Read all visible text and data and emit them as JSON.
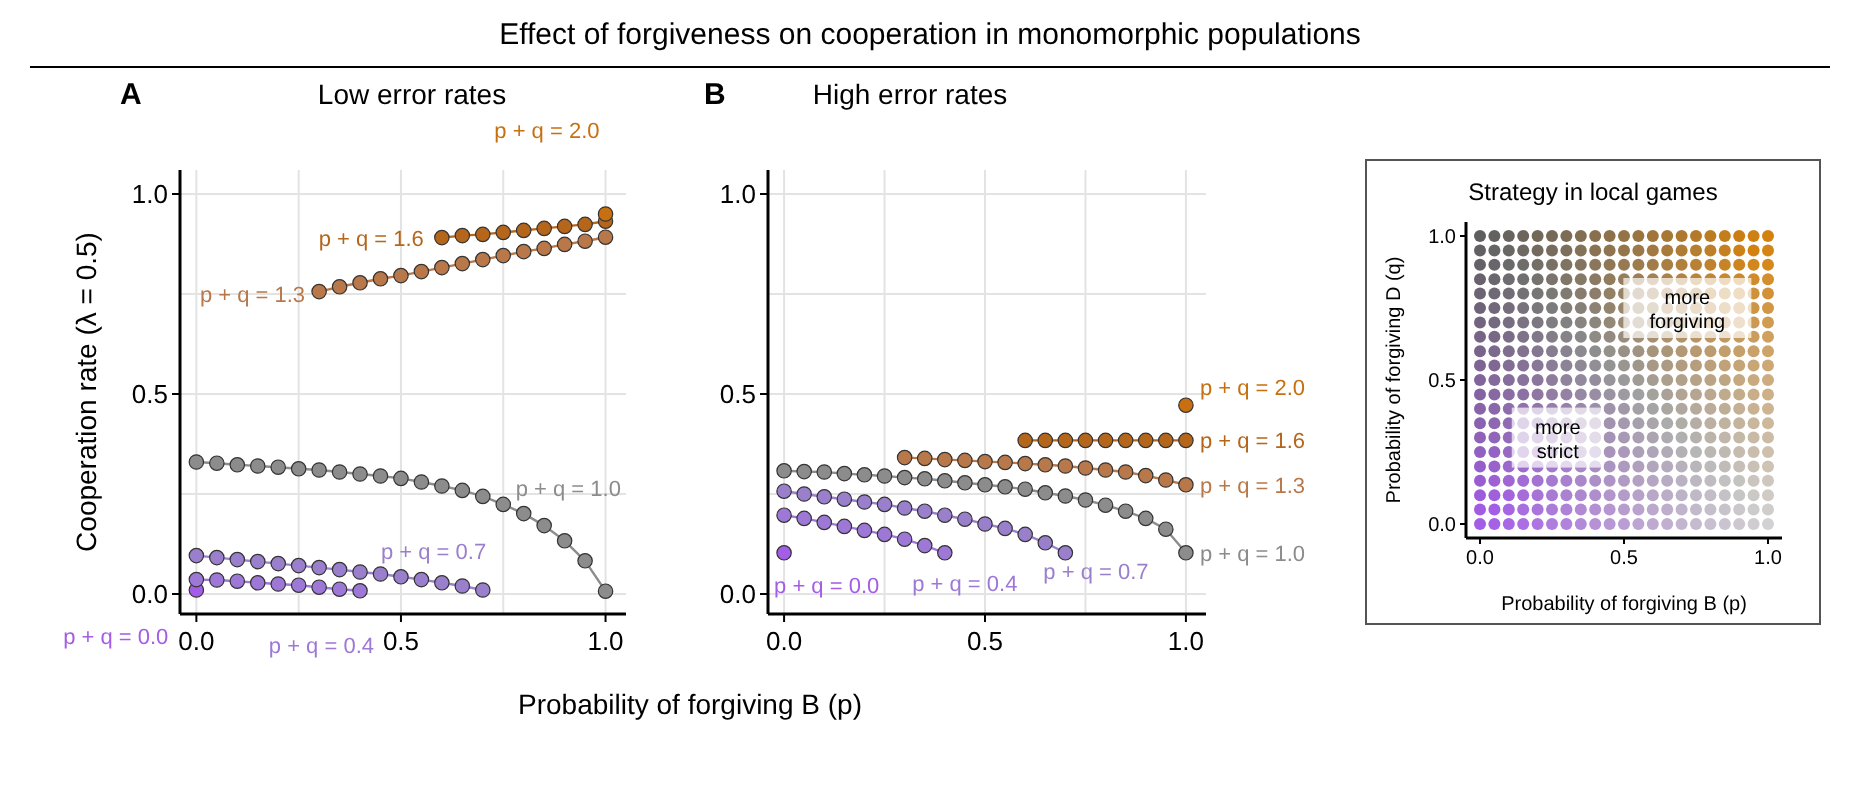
{
  "chart_data": [
    {
      "type": "line",
      "title": "Effect of forgiveness on cooperation in monomorphic populations",
      "subtitle": "Low error rates",
      "annotations": [
        "A"
      ],
      "xlabel": "Probability of forgiving B (p)",
      "ylabel": "Cooperation rate (λ = 0.5)",
      "xlim": [
        -0.04,
        1.05
      ],
      "ylim": [
        -0.05,
        1.06
      ],
      "xticks": [
        {
          "value": 0,
          "label": "0.0"
        },
        {
          "value": 0.25,
          "label": null
        },
        {
          "value": 0.5,
          "label": "0.5"
        },
        {
          "value": 0.75,
          "label": null
        },
        {
          "value": 1,
          "label": "1.0"
        }
      ],
      "yticks": [
        {
          "value": 0,
          "label": "0.0"
        },
        {
          "value": 0.25,
          "label": null
        },
        {
          "value": 0.5,
          "label": "0.5"
        },
        {
          "value": 0.75,
          "label": null
        },
        {
          "value": 1,
          "label": "1.0"
        }
      ],
      "grid": true,
      "marker": "circle",
      "series": [
        {
          "name": "p + q = 0.0",
          "color": "#a45de6",
          "x": [
            0
          ],
          "values": [
            0.01
          ]
        },
        {
          "name": "p + q = 0.4",
          "color": "#9e78d6",
          "x": [
            0,
            0.05,
            0.1,
            0.15,
            0.2,
            0.25,
            0.3,
            0.35,
            0.4
          ],
          "values": [
            0.036,
            0.035,
            0.032,
            0.028,
            0.025,
            0.022,
            0.017,
            0.012,
            0.008
          ]
        },
        {
          "name": "p + q = 0.7",
          "color": "#9a80cc",
          "x": [
            0,
            0.05,
            0.1,
            0.15,
            0.2,
            0.25,
            0.3,
            0.35,
            0.4,
            0.45,
            0.5,
            0.55,
            0.6,
            0.65,
            0.7
          ],
          "values": [
            0.096,
            0.091,
            0.086,
            0.081,
            0.076,
            0.071,
            0.066,
            0.061,
            0.055,
            0.05,
            0.043,
            0.036,
            0.028,
            0.02,
            0.01
          ]
        },
        {
          "name": "p + q = 1.0",
          "color": "#8c8c8c",
          "x": [
            0,
            0.05,
            0.1,
            0.15,
            0.2,
            0.25,
            0.3,
            0.35,
            0.4,
            0.45,
            0.5,
            0.55,
            0.6,
            0.65,
            0.7,
            0.75,
            0.8,
            0.85,
            0.9,
            0.95,
            1
          ],
          "values": [
            0.33,
            0.327,
            0.323,
            0.32,
            0.317,
            0.313,
            0.31,
            0.305,
            0.3,
            0.295,
            0.289,
            0.28,
            0.27,
            0.259,
            0.244,
            0.224,
            0.201,
            0.171,
            0.133,
            0.083,
            0.007
          ]
        },
        {
          "name": "p + q = 1.3",
          "color": "#b8784a",
          "x": [
            0.3,
            0.35,
            0.4,
            0.45,
            0.5,
            0.55,
            0.6,
            0.65,
            0.7,
            0.75,
            0.8,
            0.85,
            0.9,
            0.95,
            1
          ],
          "values": [
            0.756,
            0.768,
            0.778,
            0.788,
            0.796,
            0.806,
            0.816,
            0.826,
            0.836,
            0.846,
            0.856,
            0.864,
            0.874,
            0.882,
            0.892
          ]
        },
        {
          "name": "p + q = 1.6",
          "color": "#b5661a",
          "x": [
            0.6,
            0.65,
            0.7,
            0.75,
            0.8,
            0.85,
            0.9,
            0.95,
            1
          ],
          "values": [
            0.891,
            0.896,
            0.899,
            0.904,
            0.909,
            0.914,
            0.919,
            0.924,
            0.932
          ]
        },
        {
          "name": "p + q = 2.0",
          "color": "#c87010",
          "x": [
            1
          ],
          "values": [
            0.95
          ]
        }
      ]
    },
    {
      "type": "line",
      "title": "High error rates",
      "annotations": [
        "B"
      ],
      "xlim": [
        -0.04,
        1.05
      ],
      "ylim": [
        -0.05,
        1.06
      ],
      "xticks": [
        {
          "value": 0,
          "label": "0.0"
        },
        {
          "value": 0.25,
          "label": null
        },
        {
          "value": 0.5,
          "label": "0.5"
        },
        {
          "value": 0.75,
          "label": null
        },
        {
          "value": 1,
          "label": "1.0"
        }
      ],
      "yticks": [
        {
          "value": 0,
          "label": "0.0"
        },
        {
          "value": 0.25,
          "label": null
        },
        {
          "value": 0.5,
          "label": "0.5"
        },
        {
          "value": 0.75,
          "label": null
        },
        {
          "value": 1,
          "label": "1.0"
        }
      ],
      "grid": true,
      "marker": "circle",
      "series": [
        {
          "name": "p + q = 0.0",
          "color": "#a45de6",
          "x": [
            0
          ],
          "values": [
            0.103
          ]
        },
        {
          "name": "p + q = 0.4",
          "color": "#9e78d6",
          "x": [
            0,
            0.05,
            0.1,
            0.15,
            0.2,
            0.25,
            0.3,
            0.35,
            0.4
          ],
          "values": [
            0.197,
            0.189,
            0.179,
            0.169,
            0.159,
            0.149,
            0.137,
            0.121,
            0.103
          ]
        },
        {
          "name": "p + q = 0.7",
          "color": "#9a80cc",
          "x": [
            0,
            0.05,
            0.1,
            0.15,
            0.2,
            0.25,
            0.3,
            0.35,
            0.4,
            0.45,
            0.5,
            0.55,
            0.6,
            0.65,
            0.7
          ],
          "values": [
            0.257,
            0.25,
            0.243,
            0.237,
            0.23,
            0.224,
            0.215,
            0.207,
            0.197,
            0.187,
            0.175,
            0.164,
            0.149,
            0.128,
            0.103
          ]
        },
        {
          "name": "p + q = 1.0",
          "color": "#8c8c8c",
          "x": [
            0,
            0.05,
            0.1,
            0.15,
            0.2,
            0.25,
            0.3,
            0.35,
            0.4,
            0.45,
            0.5,
            0.55,
            0.6,
            0.65,
            0.7,
            0.75,
            0.8,
            0.85,
            0.9,
            0.95,
            1
          ],
          "values": [
            0.308,
            0.306,
            0.305,
            0.301,
            0.298,
            0.295,
            0.291,
            0.288,
            0.283,
            0.278,
            0.273,
            0.268,
            0.262,
            0.253,
            0.245,
            0.235,
            0.222,
            0.207,
            0.189,
            0.162,
            0.103
          ]
        },
        {
          "name": "p + q = 1.3",
          "color": "#b8784a",
          "x": [
            0.3,
            0.35,
            0.4,
            0.45,
            0.5,
            0.55,
            0.6,
            0.65,
            0.7,
            0.75,
            0.8,
            0.85,
            0.9,
            0.95,
            1
          ],
          "values": [
            0.341,
            0.339,
            0.336,
            0.334,
            0.331,
            0.329,
            0.326,
            0.323,
            0.32,
            0.315,
            0.31,
            0.305,
            0.296,
            0.285,
            0.273
          ]
        },
        {
          "name": "p + q = 1.6",
          "color": "#b5661a",
          "x": [
            0.6,
            0.65,
            0.7,
            0.75,
            0.8,
            0.85,
            0.9,
            0.95,
            1
          ],
          "values": [
            0.384,
            0.384,
            0.384,
            0.384,
            0.384,
            0.384,
            0.384,
            0.384,
            0.384
          ]
        },
        {
          "name": "p + q = 2.0",
          "color": "#c87010",
          "x": [
            1
          ],
          "values": [
            0.472
          ]
        }
      ]
    },
    {
      "type": "other",
      "title": "Strategy in local games",
      "xlabel": "Probability of forgiving B (p)",
      "ylabel": "Probability of forgiving D (q)",
      "annotations": [
        "more forgiving",
        "more strict",
        "0.0",
        "0.5",
        "1.0",
        "0.0",
        "0.5",
        "1.0"
      ]
    }
  ]
}
